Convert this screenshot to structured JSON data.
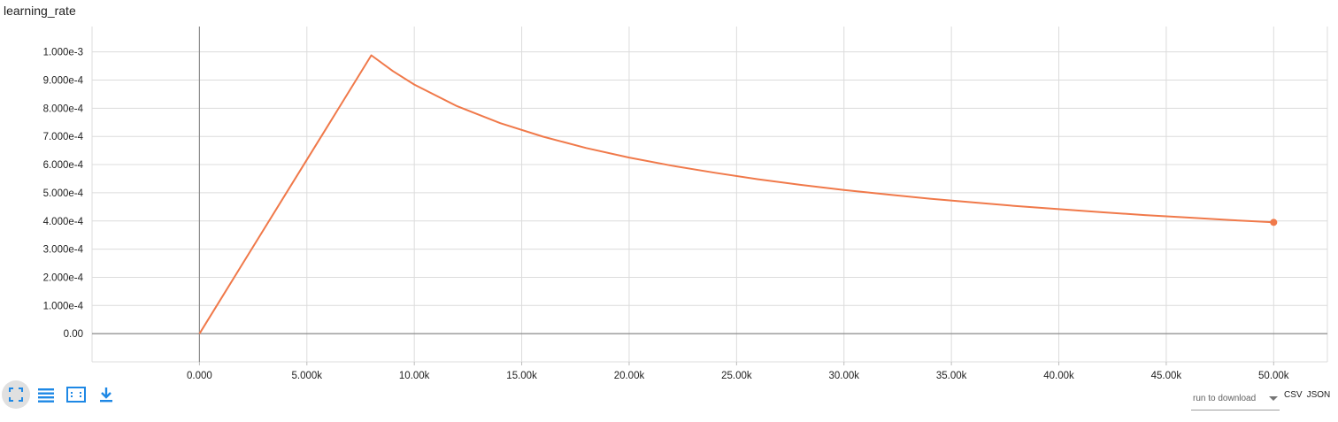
{
  "chart_data": {
    "type": "line",
    "title": "learning_rate",
    "xlabel": "",
    "ylabel": "",
    "xlim": [
      -5000,
      52500
    ],
    "ylim": [
      -0.0001,
      0.00109
    ],
    "x_ticks": [
      0,
      5000,
      10000,
      15000,
      20000,
      25000,
      30000,
      35000,
      40000,
      45000,
      50000
    ],
    "x_tick_labels": [
      "0.000",
      "5.000k",
      "10.00k",
      "15.00k",
      "20.00k",
      "25.00k",
      "30.00k",
      "35.00k",
      "40.00k",
      "45.00k",
      "50.00k"
    ],
    "y_ticks": [
      0,
      0.0001,
      0.0002,
      0.0003,
      0.0004,
      0.0005,
      0.0006,
      0.0007,
      0.0008,
      0.0009,
      0.001
    ],
    "y_tick_labels": [
      "0.00",
      "1.000e-4",
      "2.000e-4",
      "3.000e-4",
      "4.000e-4",
      "5.000e-4",
      "6.000e-4",
      "7.000e-4",
      "8.000e-4",
      "9.000e-4",
      "1.000e-3"
    ],
    "grid": true,
    "series": [
      {
        "color": "#f0794a",
        "x": [
          0,
          2000,
          4000,
          6000,
          8000,
          9000,
          10000,
          12000,
          14000,
          16000,
          18000,
          20000,
          22000,
          24000,
          26000,
          28000,
          30000,
          32000,
          34000,
          36000,
          38000,
          40000,
          42000,
          44000,
          46000,
          48000,
          50000
        ],
        "y": [
          0.0,
          0.000247,
          0.000494,
          0.000741,
          0.000988,
          0.000932,
          0.000884,
          0.000807,
          0.000747,
          0.000699,
          0.000659,
          0.000625,
          0.000596,
          0.000571,
          0.000548,
          0.000528,
          0.00051,
          0.000494,
          0.000479,
          0.000466,
          0.000453,
          0.000442,
          0.000431,
          0.000421,
          0.000412,
          0.000403,
          0.000395
        ]
      }
    ]
  },
  "toolbar": {
    "icons": [
      "fit-domain-icon",
      "toggle-log-scale-icon",
      "fit-to-data-icon",
      "download-icon"
    ],
    "accent_color": "#1e88e5"
  },
  "download": {
    "run_select_label": "run to download",
    "csv_label": "CSV",
    "json_label": "JSON"
  }
}
